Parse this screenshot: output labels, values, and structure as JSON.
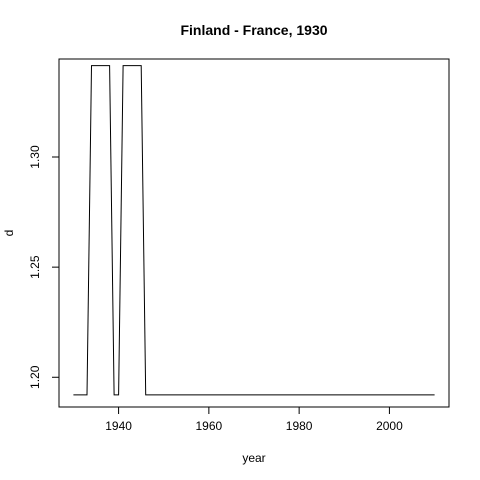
{
  "chart_data": {
    "type": "line",
    "title": "Finland - France, 1930",
    "xlabel": "year",
    "ylabel": "d",
    "xlim": [
      1926.8,
      2013.2
    ],
    "ylim": [
      1.1865,
      1.3445
    ],
    "xticks": [
      1940,
      1960,
      1980,
      2000
    ],
    "yticks": [
      1.2,
      1.25,
      1.3
    ],
    "ytick_labels": [
      "1.20",
      "1.25",
      "1.30"
    ],
    "x": [
      1930,
      1933,
      1934,
      1938,
      1939,
      1940,
      1941,
      1945,
      1946,
      2010
    ],
    "y": [
      1.192,
      1.192,
      1.3415,
      1.3415,
      1.192,
      1.192,
      1.3415,
      1.3415,
      1.192,
      1.192
    ],
    "grid": false,
    "legend": "none",
    "line_color": "#000000"
  }
}
